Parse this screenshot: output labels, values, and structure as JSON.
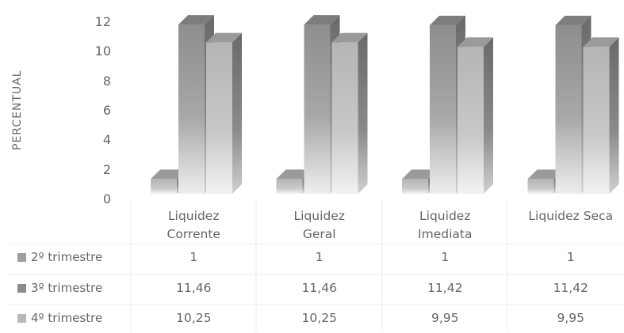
{
  "chart_data": {
    "type": "bar",
    "ylabel": "PERCENTUAL",
    "ylim": [
      0,
      12
    ],
    "yticks": [
      "0",
      "2",
      "4",
      "6",
      "8",
      "10",
      "12"
    ],
    "categories": [
      "Liquidez\nCorrente",
      "Liquidez\nGeral",
      "Liquidez\nImediata",
      "Liquidez Seca"
    ],
    "series": [
      {
        "name": "2º trimestre",
        "values": [
          1,
          1,
          1,
          1
        ],
        "labels": [
          "1",
          "1",
          "1",
          "1"
        ],
        "color": "#9e9e9e"
      },
      {
        "name": "3º trimestre",
        "values": [
          11.46,
          11.46,
          11.42,
          11.42
        ],
        "labels": [
          "11,46",
          "11,46",
          "11,42",
          "11,42"
        ],
        "color": "#8c8c8c"
      },
      {
        "name": "4º trimestre",
        "values": [
          10.25,
          10.25,
          9.95,
          9.95
        ],
        "labels": [
          "10,25",
          "10,25",
          "9,95",
          "9,95"
        ],
        "color": "#b8b8b8"
      }
    ],
    "grid": false,
    "legend": "data-table"
  }
}
